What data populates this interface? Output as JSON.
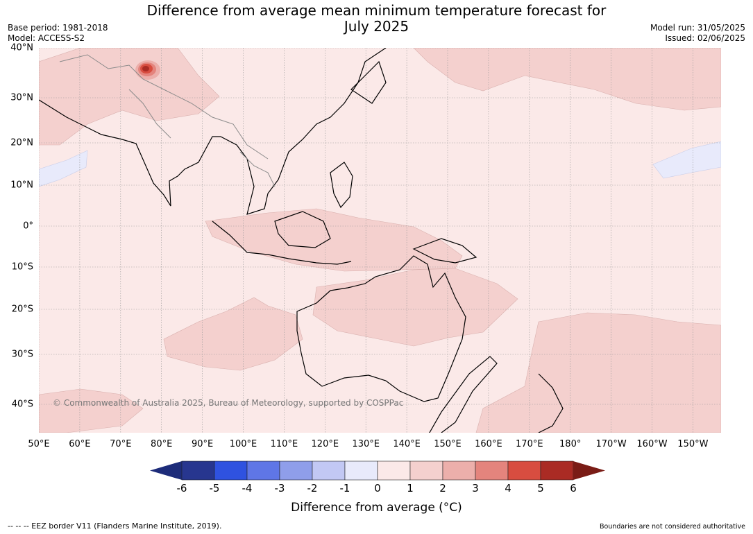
{
  "title": {
    "line1": "Difference from average mean minimum temperature forecast for",
    "line2": "July 2025"
  },
  "meta_left": {
    "base_period": "Base period: 1981-2018",
    "model": "Model: ACCESS-S2"
  },
  "meta_right": {
    "model_run": "Model run: 31/05/2025",
    "issued": "Issued: 02/06/2025"
  },
  "map": {
    "projection": "plate-carree",
    "lat_labels": [
      "40°N",
      "30°N",
      "20°N",
      "10°N",
      "0°",
      "10°S",
      "20°S",
      "30°S",
      "40°S"
    ],
    "lon_labels": [
      "50°E",
      "60°E",
      "70°E",
      "80°E",
      "90°E",
      "100°E",
      "110°E",
      "120°E",
      "130°E",
      "140°E",
      "150°E",
      "160°E",
      "170°E",
      "180°",
      "170°W",
      "160°W",
      "150°W"
    ],
    "background_category": "0 to 1",
    "anomaly_regions": [
      {
        "area": "Northwest Pacific (north of 30°N)",
        "category": "1 to 2"
      },
      {
        "area": "Indonesian seas / Maritime Continent",
        "category": "1 to 2"
      },
      {
        "area": "Northern and central Australia",
        "category": "1 to 2"
      },
      {
        "area": "Southwest Pacific near New Zealand",
        "category": "1 to 2"
      },
      {
        "area": "Tasman Sea",
        "category": "1 to 2"
      },
      {
        "area": "Western Himalaya / Kashmir",
        "category": "4 to 6"
      },
      {
        "area": "Arabian Sea (west)",
        "category": "-1 to 0"
      },
      {
        "area": "Central North Pacific (~20°N, 150°W)",
        "category": "-1 to 0"
      }
    ]
  },
  "copyright": "© Commonwealth of Australia 2025, Bureau of Meteorology, supported by COSPPac",
  "colorbar": {
    "title": "Difference from average (°C)",
    "ticks": [
      "-6",
      "-5",
      "-4",
      "-3",
      "-2",
      "-1",
      "0",
      "1",
      "2",
      "3",
      "4",
      "5",
      "6"
    ],
    "colors": [
      "#27368f",
      "#2f52e0",
      "#5f76e6",
      "#8f9eea",
      "#c2c8f4",
      "#e8eafb",
      "#fbe9e8",
      "#f4d0ce",
      "#ecafab",
      "#e4847d",
      "#d84d40",
      "#aa2b24"
    ],
    "under_color": "#1d2c7a",
    "over_color": "#7a1c16"
  },
  "footer": {
    "eez_note": "--  --  -- EEZ border V11 (Flanders Marine Institute, 2019).",
    "boundaries_note": "Boundaries are not considered authoritative"
  }
}
